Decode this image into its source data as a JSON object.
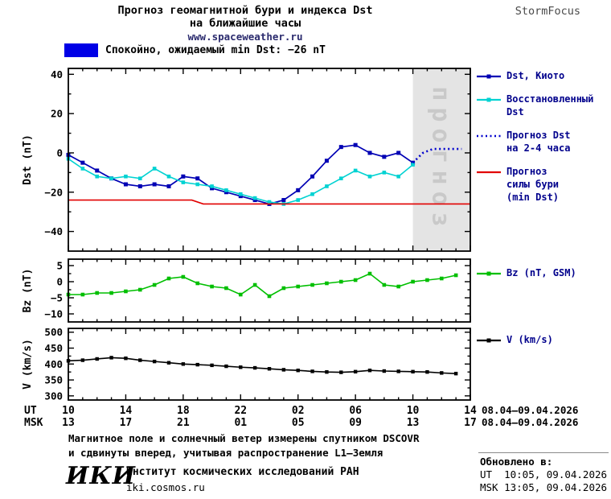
{
  "header": {
    "title_line1": "Прогноз геомагнитной бури и индекса Dst",
    "title_line2": "на ближайшие часы",
    "site": "www.spaceweather.ru",
    "brand": "StormFocus"
  },
  "status": {
    "label": "Спокойно, ожидаемый min Dst: −26 nT",
    "swatch_color": "#0000e6"
  },
  "chart_data": [
    {
      "type": "line",
      "ylabel": "Dst (nT)",
      "xlim": [
        0,
        28
      ],
      "ylim": [
        -50,
        43
      ],
      "xticks": [
        0,
        4,
        8,
        12,
        16,
        20,
        24,
        28
      ],
      "yticks": [
        -40,
        -20,
        0,
        20,
        40
      ],
      "xminor": 1,
      "yminor": 10,
      "forecast_band": {
        "from": 24,
        "to": 28,
        "label": "прогноз"
      },
      "series": [
        {
          "key": "dst_kyoto",
          "name": "Dst, Киото",
          "color": "#0000b4",
          "marker": true,
          "marker_size": 5,
          "width": 1.7,
          "y": [
            -1,
            -5,
            -9,
            -13,
            -16,
            -17,
            -16,
            -17,
            -12,
            -13,
            -18,
            -20,
            -22,
            -24,
            -26,
            -24,
            -19,
            -12,
            -4,
            3,
            4,
            0,
            -2,
            0,
            -5
          ]
        },
        {
          "key": "dst_reconstructed",
          "name": "Восстановленный Dst",
          "color": "#00d2d2",
          "marker": true,
          "marker_size": 4.6,
          "width": 1.6,
          "y": [
            -3,
            -8,
            -12,
            -13,
            -12,
            -13,
            -8,
            -12,
            -15,
            -16,
            -17,
            -19,
            -21,
            -23,
            -25,
            -26,
            -24,
            -21,
            -17,
            -13,
            -9,
            -12,
            -10,
            -12,
            -6
          ]
        },
        {
          "key": "dst_forecast",
          "name": "Прогноз Dst на 2-4 часа",
          "color": "#0000cd",
          "dash": "2 3.5",
          "width": 2.6,
          "x": [
            24,
            24.7,
            25.4,
            26.2,
            26.9,
            27.4
          ],
          "y": [
            -5,
            0,
            2,
            2,
            2,
            2
          ]
        },
        {
          "key": "storm_min_forecast",
          "name": "Прогноз силы бури (min Dst)",
          "color": "#e10000",
          "width": 1.7,
          "x": [
            0,
            8.6,
            9.4,
            28
          ],
          "y": [
            -24,
            -24,
            -26,
            -26
          ]
        }
      ]
    },
    {
      "type": "line",
      "ylabel": "Bz (nT)",
      "xlim": [
        0,
        28
      ],
      "ylim": [
        -12.5,
        7
      ],
      "xticks": [
        0,
        4,
        8,
        12,
        16,
        20,
        24,
        28
      ],
      "yticks": [
        5,
        0,
        -5,
        -10
      ],
      "xminor": 1,
      "yminor": 2.5,
      "series": [
        {
          "key": "bz",
          "name": "Bz (nT, GSM)",
          "color": "#00bf00",
          "marker": true,
          "marker_size": 4.6,
          "width": 1.6,
          "y": [
            -4,
            -4,
            -3.5,
            -3.5,
            -3,
            -2.5,
            -1,
            1,
            1.5,
            -0.5,
            -1.5,
            -2,
            -4,
            -1,
            -4.5,
            -2,
            -1.5,
            -1,
            -0.5,
            0,
            0.5,
            2.5,
            -1,
            -1.5,
            0,
            0.5,
            1,
            2
          ]
        }
      ]
    },
    {
      "type": "line",
      "ylabel": "V (km/s)",
      "xlim": [
        0,
        28
      ],
      "ylim": [
        287,
        512
      ],
      "xticks": [
        0,
        4,
        8,
        12,
        16,
        20,
        24,
        28
      ],
      "yticks": [
        500,
        450,
        400,
        350,
        300
      ],
      "xminor": 1,
      "yminor": 25,
      "series": [
        {
          "key": "v",
          "name": "V (km/s)",
          "color": "#000000",
          "marker": true,
          "marker_size": 4.4,
          "width": 1.6,
          "y": [
            410,
            412,
            416,
            420,
            418,
            412,
            408,
            404,
            400,
            398,
            396,
            393,
            390,
            388,
            385,
            382,
            380,
            377,
            375,
            374,
            376,
            380,
            378,
            377,
            376,
            375,
            372,
            370
          ]
        }
      ]
    }
  ],
  "legends": {
    "main": [
      {
        "sample": "line-marker",
        "color": "#0000b4",
        "lines": [
          "Dst, Киото"
        ]
      },
      {
        "sample": "line-marker",
        "color": "#00d2d2",
        "lines": [
          "Восстановленный",
          "Dst"
        ]
      },
      {
        "sample": "dotted",
        "color": "#0000cd",
        "lines": [
          "Прогноз Dst",
          "на 2-4 часа"
        ]
      },
      {
        "sample": "line",
        "color": "#e10000",
        "lines": [
          "Прогноз",
          "силы бури",
          "(min Dst)"
        ]
      }
    ],
    "bz": [
      {
        "sample": "line-marker",
        "color": "#00bf00",
        "lines": [
          "Bz (nT, GSM)"
        ]
      }
    ],
    "v": [
      {
        "sample": "line-marker",
        "color": "#000000",
        "lines": [
          "V (km/s)"
        ]
      }
    ]
  },
  "xaxis": {
    "row1_header": "UT",
    "row2_header": "MSK",
    "row1_ticks": [
      "10",
      "14",
      "18",
      "22",
      "02",
      "06",
      "10",
      "14"
    ],
    "row2_ticks": [
      "13",
      "17",
      "21",
      "01",
      "05",
      "09",
      "13",
      "17"
    ],
    "row1_date": "08.04—09.04.2026",
    "row2_date": "08.04—09.04.2026"
  },
  "footer": {
    "note1": "Магнитное поле и солнечный ветер измерены спутником DSCOVR",
    "note2": "и сдвинуты вперед, учитывая распространение L1—Земля",
    "logo": "ИКИ",
    "institute": "Институт космических исследований РАН",
    "institute_site": "iki.cosmos.ru"
  },
  "updated": {
    "heading": "Обновлено в:",
    "ut": "UT  10:05, 09.04.2026",
    "msk": "MSK 13:05, 09.04.2026"
  }
}
